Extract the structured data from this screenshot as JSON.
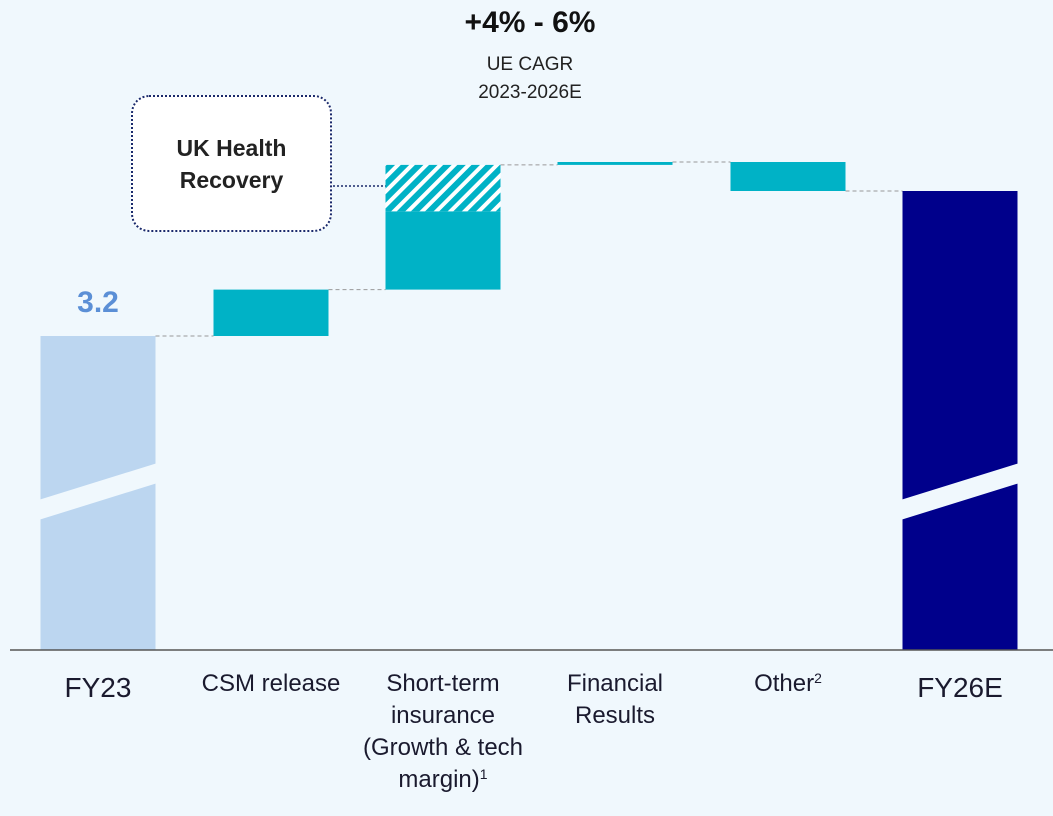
{
  "chart_data": {
    "type": "waterfall",
    "title": "+4% - 6%",
    "subtitle": [
      "UE CAGR",
      "2023-2026E"
    ],
    "categories": [
      "FY23",
      "CSM release",
      "Short-term insurance (Growth & tech margin)",
      "Financial Results",
      "Other",
      "FY26E"
    ],
    "footnotes": [
      null,
      null,
      "1",
      null,
      "2",
      null
    ],
    "kinds": [
      "total",
      "delta",
      "delta",
      "delta",
      "delta",
      "total"
    ],
    "values": [
      3.2,
      0.16,
      0.27,
      0.01,
      -0.1,
      3.7
    ],
    "value_labels": [
      "3.2",
      null,
      null,
      null,
      null,
      null
    ],
    "colors": [
      "#bcd6f0",
      "#00b2c6",
      "#00b2c6",
      "#00b2c6",
      "#00b2c6",
      "#00008b"
    ],
    "annotation": {
      "text": "UK Health Recovery",
      "category_index": 2,
      "value": 0.16,
      "pattern": "hatched"
    },
    "axis_break": true
  }
}
